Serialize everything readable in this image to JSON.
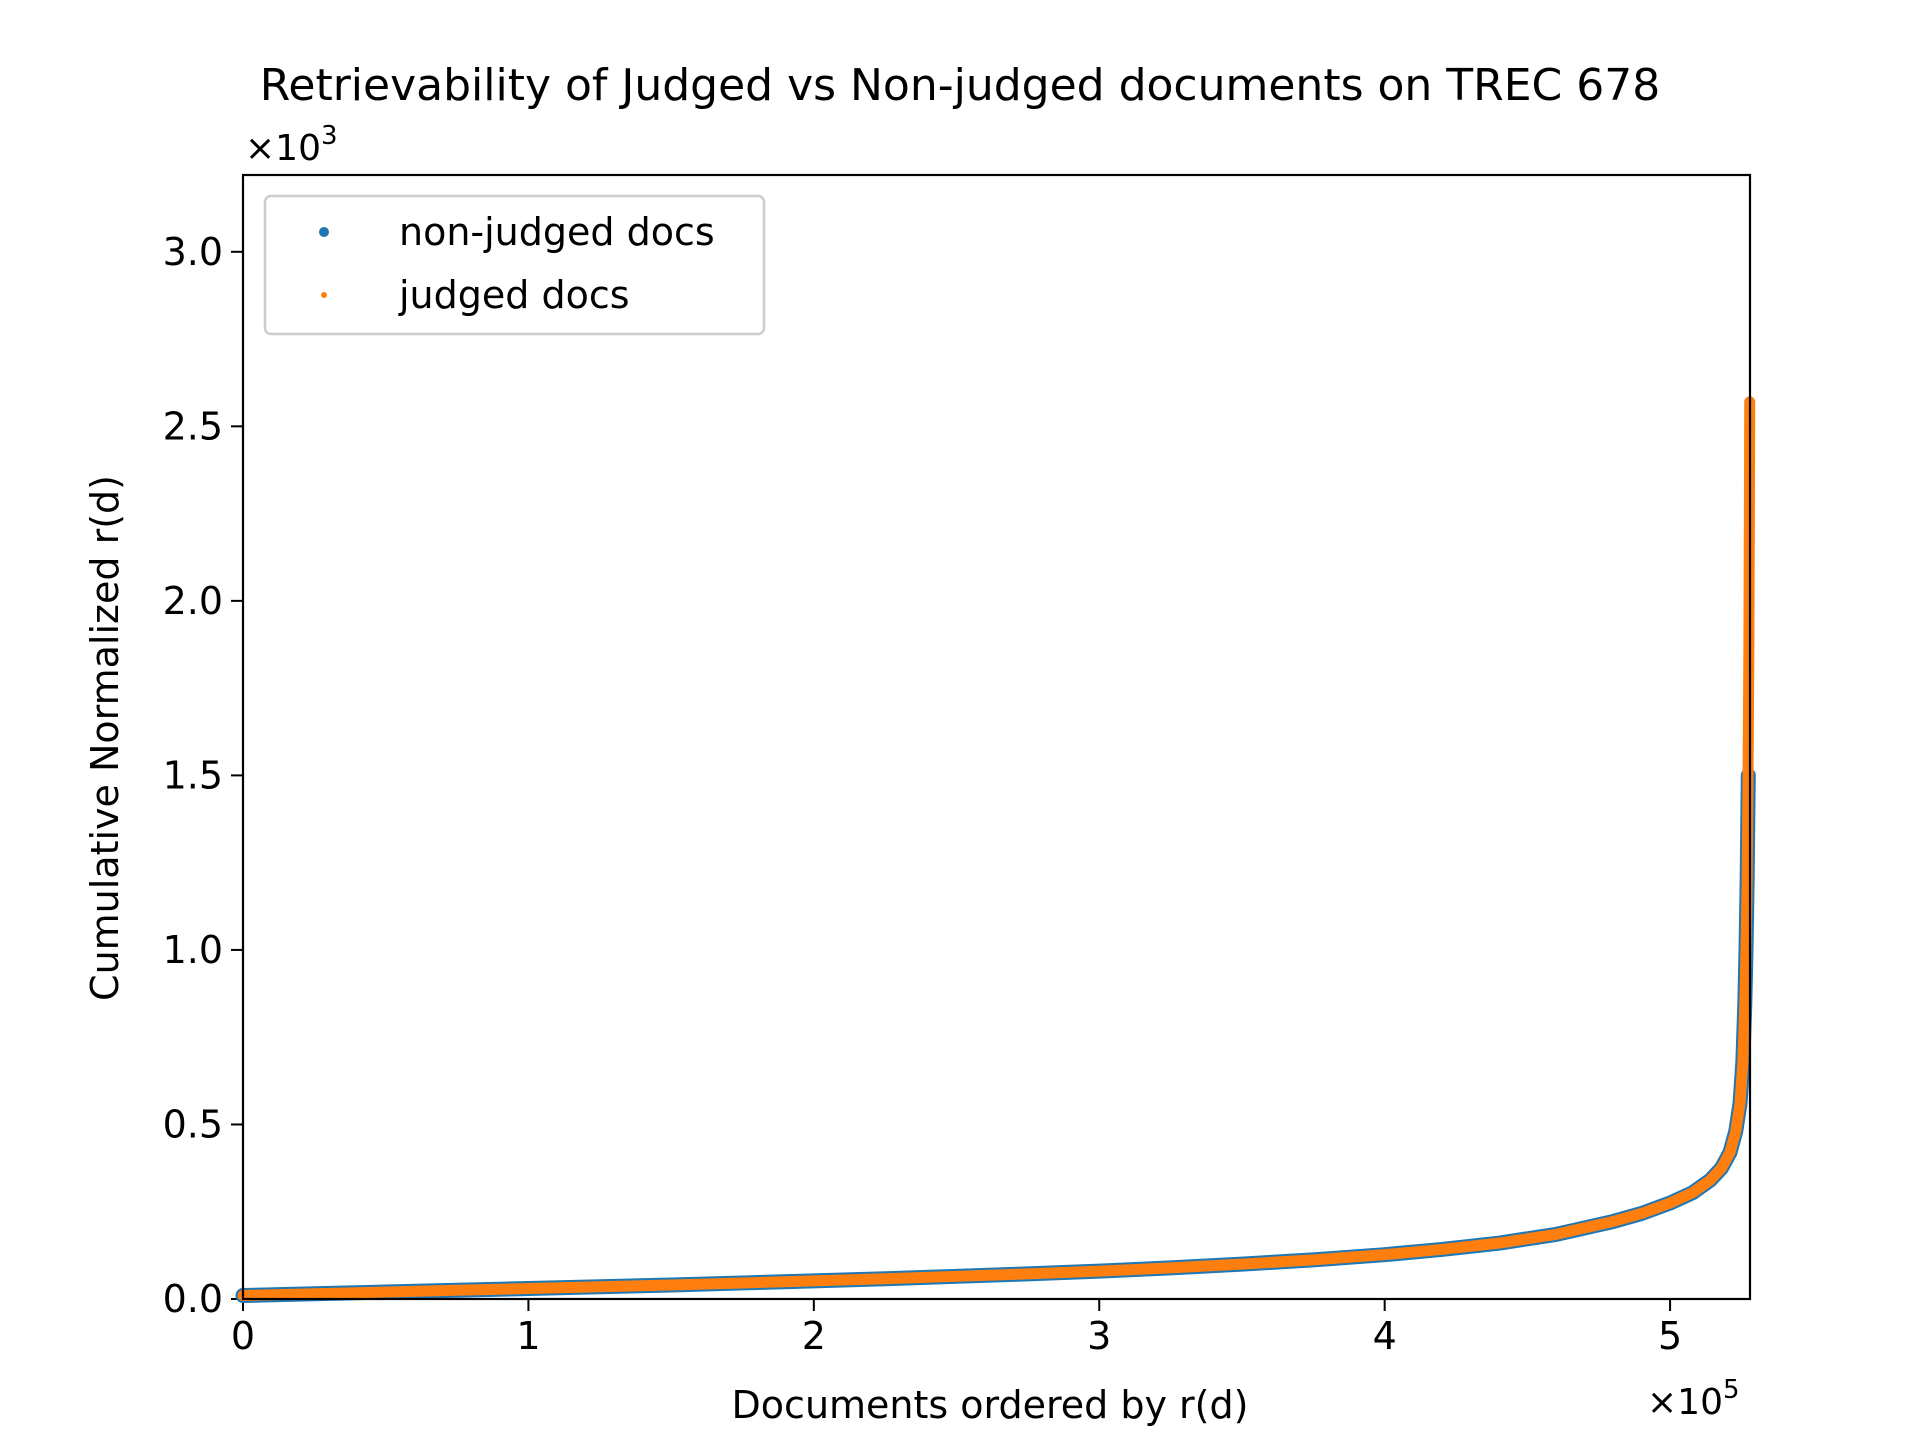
{
  "chart_data": {
    "type": "scatter",
    "title": "Retrievability of Judged vs Non-judged documents on TREC 678",
    "xlabel": "Documents ordered by r(d)",
    "ylabel": "Cumulative Normalized r(d)",
    "x_multiplier": "×10",
    "x_multiplier_exp": "5",
    "y_multiplier": "×10",
    "y_multiplier_exp": "3",
    "xlim": [
      0,
      5.28
    ],
    "ylim": [
      0,
      3.22
    ],
    "x_ticks": [
      0,
      1,
      2,
      3,
      4,
      5
    ],
    "x_tick_labels": [
      "0",
      "1",
      "2",
      "3",
      "4",
      "5"
    ],
    "y_ticks": [
      0,
      0.5,
      1.0,
      1.5,
      2.0,
      2.5,
      3.0
    ],
    "y_tick_labels": [
      "0.0",
      "0.5",
      "1.0",
      "1.5",
      "2.0",
      "2.5",
      "3.0"
    ],
    "grid": false,
    "legend_position": "top-left",
    "series": [
      {
        "name": "non-judged docs",
        "color": "#1f77b4",
        "x": [
          0.0,
          0.25,
          0.5,
          0.75,
          1.0,
          1.25,
          1.5,
          1.75,
          2.0,
          2.25,
          2.5,
          2.75,
          3.0,
          3.25,
          3.5,
          3.75,
          4.0,
          4.2,
          4.4,
          4.6,
          4.8,
          4.9,
          5.0,
          5.08,
          5.14,
          5.18,
          5.21,
          5.23,
          5.245,
          5.255,
          5.262,
          5.266,
          5.27,
          5.272,
          5.274
        ],
        "y": [
          0.01,
          0.015,
          0.02,
          0.025,
          0.03,
          0.035,
          0.04,
          0.046,
          0.052,
          0.058,
          0.065,
          0.072,
          0.08,
          0.089,
          0.1,
          0.112,
          0.127,
          0.142,
          0.16,
          0.185,
          0.222,
          0.245,
          0.275,
          0.305,
          0.34,
          0.375,
          0.42,
          0.48,
          0.56,
          0.68,
          0.85,
          1.0,
          1.2,
          1.35,
          1.5
        ]
      },
      {
        "name": "judged docs",
        "color": "#ff7f0e",
        "x": [
          0.0,
          0.25,
          0.5,
          0.75,
          1.0,
          1.25,
          1.5,
          1.75,
          2.0,
          2.25,
          2.5,
          2.75,
          3.0,
          3.25,
          3.5,
          3.75,
          4.0,
          4.2,
          4.4,
          4.6,
          4.8,
          4.9,
          5.0,
          5.08,
          5.14,
          5.18,
          5.21,
          5.23,
          5.245,
          5.255,
          5.262,
          5.266,
          5.27,
          5.272,
          5.274,
          5.276,
          5.277,
          5.278,
          5.279
        ],
        "y": [
          0.01,
          0.015,
          0.02,
          0.025,
          0.03,
          0.035,
          0.04,
          0.046,
          0.052,
          0.058,
          0.065,
          0.072,
          0.08,
          0.089,
          0.1,
          0.112,
          0.127,
          0.142,
          0.16,
          0.185,
          0.222,
          0.245,
          0.275,
          0.305,
          0.34,
          0.375,
          0.42,
          0.48,
          0.56,
          0.68,
          0.85,
          1.0,
          1.2,
          1.4,
          1.6,
          1.85,
          2.07,
          2.3,
          2.57
        ]
      }
    ]
  }
}
